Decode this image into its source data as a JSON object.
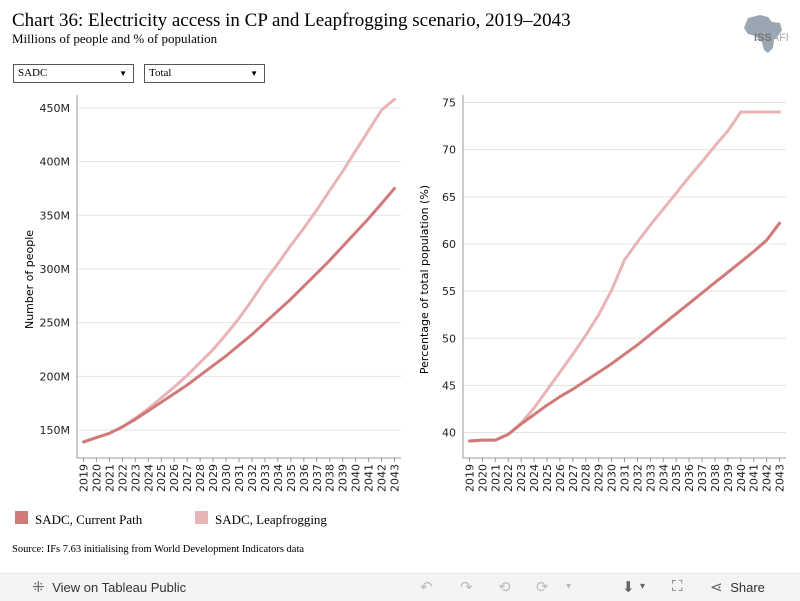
{
  "header": {
    "title": "Chart 36: Electricity access in CP and Leapfrogging scenario, 2019–2043",
    "subtitle": "Millions of people and % of population"
  },
  "logo": {
    "text_bold": "ISS",
    "text_light": "AFI"
  },
  "filters": {
    "region": "SADC",
    "measure": "Total",
    "arrow": "▼"
  },
  "colors": {
    "current_path": "#d07a7a",
    "leapfrogging": "#e8b4b6",
    "gridline": "#e3e3e3",
    "axis": "#999999"
  },
  "chart_data": [
    {
      "type": "line",
      "ylabel": "Number of people",
      "y_ticks": [
        150,
        200,
        250,
        300,
        350,
        400,
        450
      ],
      "y_tick_labels": [
        "150M",
        "200M",
        "250M",
        "300M",
        "350M",
        "400M",
        "450M"
      ],
      "ylim": [
        124,
        462
      ],
      "x_labels": [
        "2019",
        "2020",
        "2021",
        "2022",
        "2023",
        "2024",
        "2025",
        "2026",
        "2027",
        "2028",
        "2029",
        "2030",
        "2031",
        "2032",
        "2033",
        "2034",
        "2035",
        "2036",
        "2037",
        "2038",
        "2039",
        "2040",
        "2041",
        "2042",
        "2043"
      ],
      "x": [
        2019,
        2020,
        2021,
        2022,
        2023,
        2024,
        2025,
        2026,
        2027,
        2028,
        2029,
        2030,
        2031,
        2032,
        2033,
        2034,
        2035,
        2036,
        2037,
        2038,
        2039,
        2040,
        2041,
        2042,
        2043
      ],
      "grid": true,
      "series": [
        {
          "name": "SADC, Current Path",
          "color_key": "current_path",
          "values": [
            139,
            143,
            147,
            153,
            160,
            168,
            176,
            184,
            192,
            201,
            210,
            219,
            229,
            239,
            250,
            261,
            272,
            284,
            296,
            308,
            321,
            334,
            347,
            361,
            375
          ]
        },
        {
          "name": "SADC, Leapfrogging",
          "color_key": "leapfrogging",
          "values": [
            139,
            143,
            147,
            153,
            161,
            170,
            180,
            190,
            201,
            213,
            225,
            239,
            254,
            271,
            289,
            305,
            322,
            338,
            355,
            373,
            391,
            410,
            429,
            448,
            458
          ]
        }
      ]
    },
    {
      "type": "line",
      "ylabel": "Percentage of total population (%)",
      "y_ticks": [
        40,
        45,
        50,
        55,
        60,
        65,
        70,
        75
      ],
      "y_tick_labels": [
        "40",
        "45",
        "50",
        "55",
        "60",
        "65",
        "70",
        "75"
      ],
      "ylim": [
        37.3,
        75.8
      ],
      "x_labels": [
        "2019",
        "2020",
        "2021",
        "2022",
        "2023",
        "2024",
        "2025",
        "2026",
        "2027",
        "2028",
        "2029",
        "2030",
        "2031",
        "2032",
        "2033",
        "2034",
        "2035",
        "2036",
        "2037",
        "2038",
        "2039",
        "2040",
        "2041",
        "2042",
        "2043"
      ],
      "x": [
        2019,
        2020,
        2021,
        2022,
        2023,
        2024,
        2025,
        2026,
        2027,
        2028,
        2029,
        2030,
        2031,
        2032,
        2033,
        2034,
        2035,
        2036,
        2037,
        2038,
        2039,
        2040,
        2041,
        2042,
        2043
      ],
      "grid": true,
      "series": [
        {
          "name": "SADC, Current Path",
          "color_key": "current_path",
          "values": [
            39.1,
            39.2,
            39.2,
            39.8,
            40.9,
            41.9,
            42.9,
            43.8,
            44.6,
            45.5,
            46.4,
            47.3,
            48.3,
            49.3,
            50.4,
            51.5,
            52.6,
            53.7,
            54.8,
            55.9,
            57.0,
            58.1,
            59.2,
            60.4,
            62.2
          ]
        },
        {
          "name": "SADC, Leapfrogging",
          "color_key": "leapfrogging",
          "values": [
            39.1,
            39.2,
            39.2,
            39.8,
            41.0,
            42.6,
            44.5,
            46.4,
            48.3,
            50.3,
            52.5,
            55.1,
            58.3,
            60.2,
            62.0,
            63.7,
            65.4,
            67.1,
            68.7,
            70.4,
            72.0,
            74.0,
            74.0,
            74.0,
            74.0
          ]
        }
      ]
    }
  ],
  "legend": [
    {
      "label": "SADC, Current Path",
      "color_key": "current_path"
    },
    {
      "label": "SADC, Leapfrogging",
      "color_key": "leapfrogging"
    }
  ],
  "source": "Source: IFs 7.63 initialising from World Development Indicators data",
  "toolbar": {
    "view_label": "View on Tableau Public",
    "share_label": "Share"
  }
}
